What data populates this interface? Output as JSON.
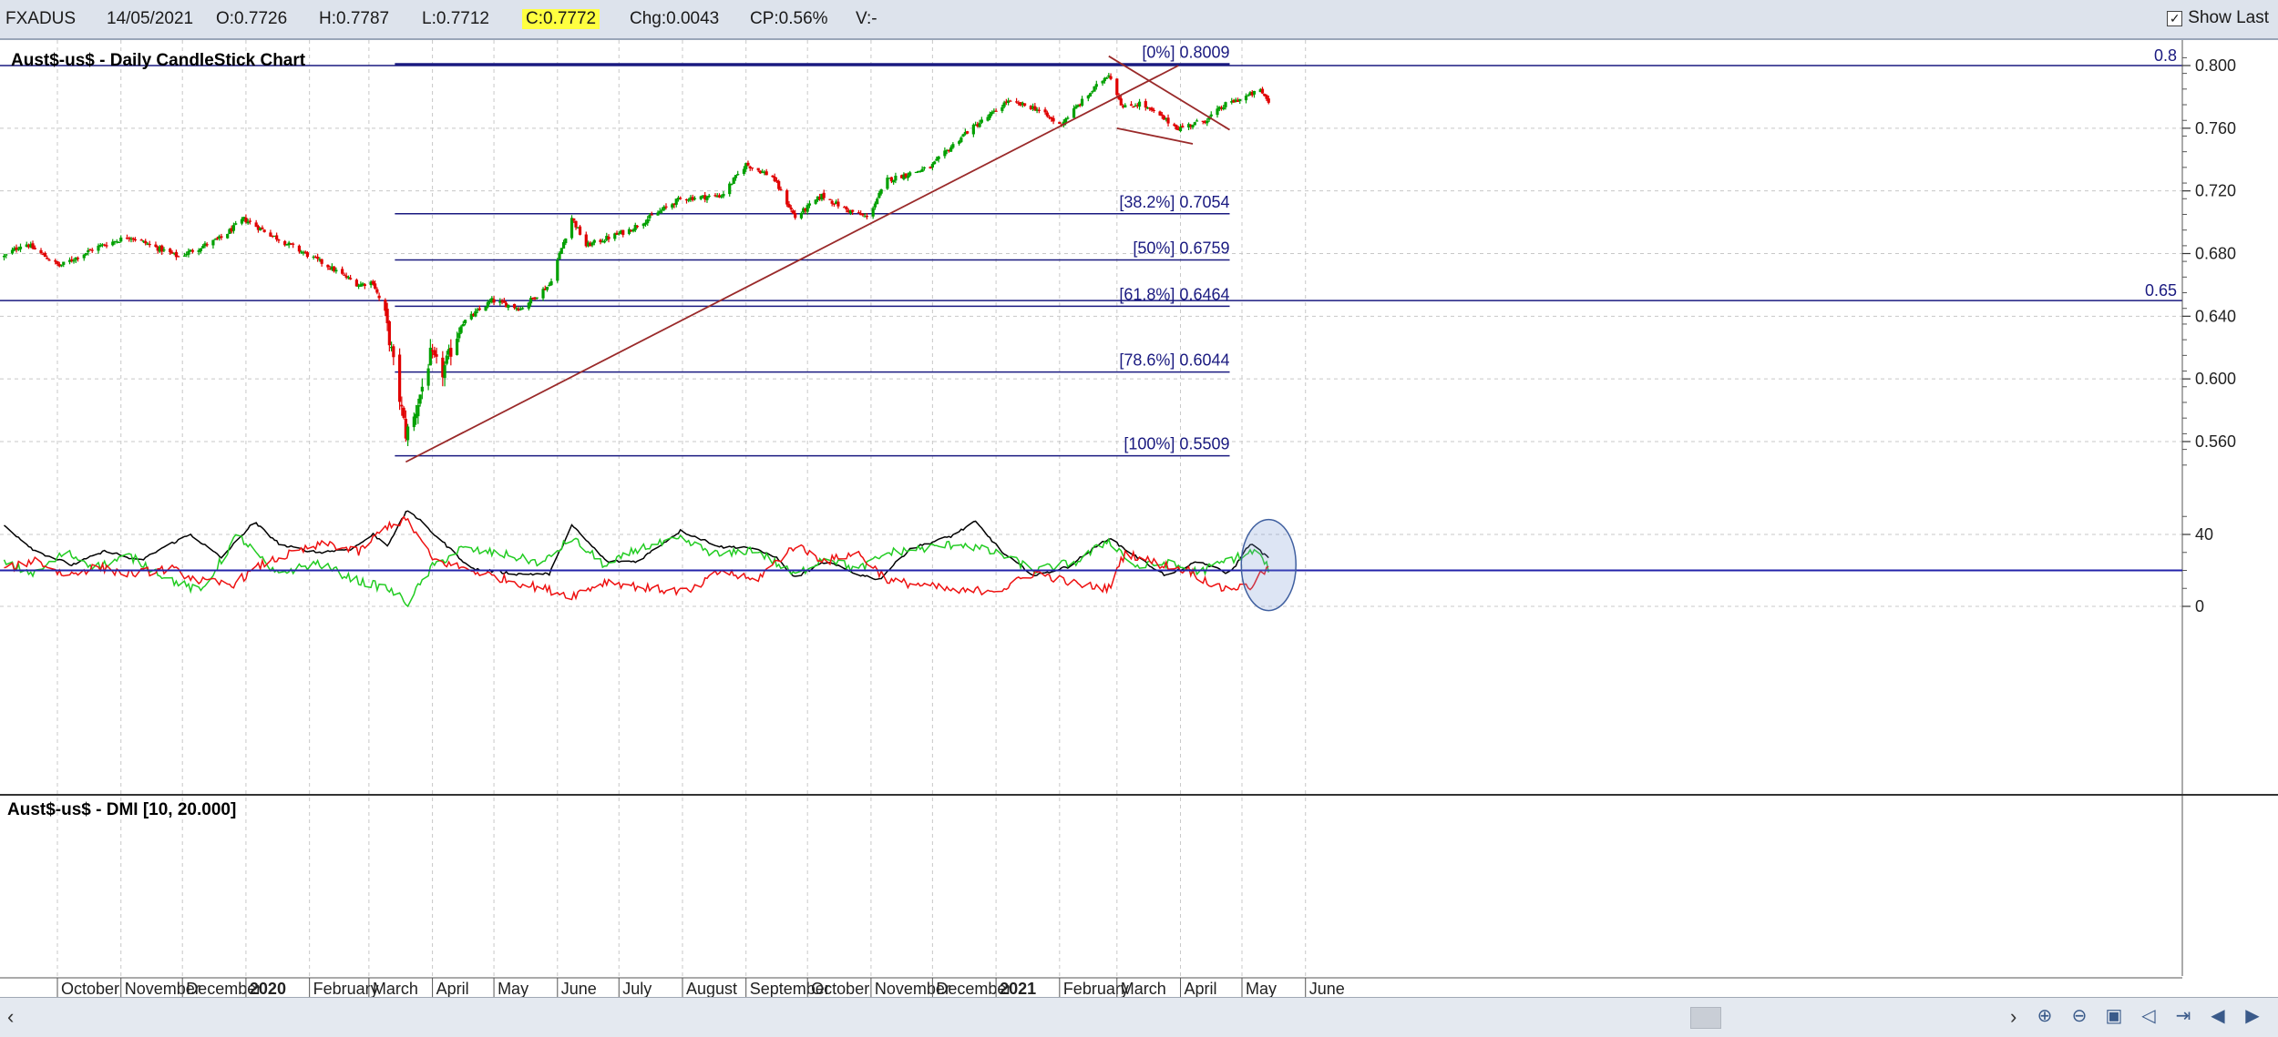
{
  "toolbar": {
    "symbol": "FXADUS",
    "date": "14/05/2021",
    "open": "O:0.7726",
    "high": "H:0.7787",
    "low": "L:0.7712",
    "close": "C:0.7772",
    "change": "Chg:0.0043",
    "change_pct": "CP:0.56%",
    "volume": "V:-",
    "show_last_label": "Show Last",
    "show_last_checked": true
  },
  "colors": {
    "background": "#ffffff",
    "grid": "#c8c8c8",
    "up_candle": "#00a000",
    "down_candle": "#e00000",
    "fib_lines": "#1a1a80",
    "trendline": "#9a2a2a",
    "dmi_adx": "#000000",
    "dmi_plus": "#22cc22",
    "dmi_minus": "#ee1111",
    "dmi_threshold": "#2222aa"
  },
  "chart_data": [
    {
      "type": "candlestick",
      "title": "Aust$-us$ - Daily CandleStick Chart",
      "ylim": [
        0.54,
        0.815
      ],
      "y_ticks": [
        "0.800",
        "0.760",
        "0.720",
        "0.680",
        "0.640",
        "0.600",
        "0.560"
      ],
      "x_labels": [
        "October",
        "November",
        "December",
        "2020",
        "February",
        "March",
        "April",
        "May",
        "June",
        "July",
        "August",
        "September",
        "October",
        "November",
        "December",
        "2021",
        "February",
        "March",
        "April",
        "May",
        "June"
      ],
      "price_anchors": [
        {
          "date": "2019-09-05",
          "close": 0.678
        },
        {
          "date": "2019-09-15",
          "close": 0.687
        },
        {
          "date": "2019-10-02",
          "close": 0.672
        },
        {
          "date": "2019-10-20",
          "close": 0.684
        },
        {
          "date": "2019-11-05",
          "close": 0.691
        },
        {
          "date": "2019-11-29",
          "close": 0.678
        },
        {
          "date": "2019-12-20",
          "close": 0.69
        },
        {
          "date": "2019-12-31",
          "close": 0.702
        },
        {
          "date": "2020-01-20",
          "close": 0.687
        },
        {
          "date": "2020-02-10",
          "close": 0.672
        },
        {
          "date": "2020-02-25",
          "close": 0.66
        },
        {
          "date": "2020-03-03",
          "close": 0.662
        },
        {
          "date": "2020-03-09",
          "close": 0.64
        },
        {
          "date": "2020-03-19",
          "close": 0.565
        },
        {
          "date": "2020-03-23",
          "close": 0.575
        },
        {
          "date": "2020-03-31",
          "close": 0.615
        },
        {
          "date": "2020-04-06",
          "close": 0.604
        },
        {
          "date": "2020-04-15",
          "close": 0.635
        },
        {
          "date": "2020-04-30",
          "close": 0.65
        },
        {
          "date": "2020-05-14",
          "close": 0.645
        },
        {
          "date": "2020-05-28",
          "close": 0.66
        },
        {
          "date": "2020-06-08",
          "close": 0.703
        },
        {
          "date": "2020-06-15",
          "close": 0.685
        },
        {
          "date": "2020-07-06",
          "close": 0.695
        },
        {
          "date": "2020-07-31",
          "close": 0.715
        },
        {
          "date": "2020-08-20",
          "close": 0.717
        },
        {
          "date": "2020-09-01",
          "close": 0.737
        },
        {
          "date": "2020-09-14",
          "close": 0.729
        },
        {
          "date": "2020-09-25",
          "close": 0.703
        },
        {
          "date": "2020-10-08",
          "close": 0.717
        },
        {
          "date": "2020-10-20",
          "close": 0.708
        },
        {
          "date": "2020-10-30",
          "close": 0.703
        },
        {
          "date": "2020-11-09",
          "close": 0.727
        },
        {
          "date": "2020-11-30",
          "close": 0.735
        },
        {
          "date": "2020-12-17",
          "close": 0.757
        },
        {
          "date": "2020-12-31",
          "close": 0.77
        },
        {
          "date": "2021-01-06",
          "close": 0.777
        },
        {
          "date": "2021-01-20",
          "close": 0.773
        },
        {
          "date": "2021-02-01",
          "close": 0.762
        },
        {
          "date": "2021-02-25",
          "close": 0.795
        },
        {
          "date": "2021-03-04",
          "close": 0.773
        },
        {
          "date": "2021-03-12",
          "close": 0.776
        },
        {
          "date": "2021-03-31",
          "close": 0.76
        },
        {
          "date": "2021-04-13",
          "close": 0.765
        },
        {
          "date": "2021-04-23",
          "close": 0.775
        },
        {
          "date": "2021-05-10",
          "close": 0.784
        },
        {
          "date": "2021-05-14",
          "close": 0.777
        }
      ],
      "horizontal_lines": [
        {
          "value": 0.8,
          "label": "0.8"
        },
        {
          "value": 0.65,
          "label": "0.65"
        }
      ],
      "fibonacci_levels": [
        {
          "label": "[0%] 0.8009",
          "value": 0.8009
        },
        {
          "label": "[38.2%] 0.7054",
          "value": 0.7054
        },
        {
          "label": "[50%] 0.6759",
          "value": 0.6759
        },
        {
          "label": "[61.8%] 0.6464",
          "value": 0.6464
        },
        {
          "label": "[78.6%] 0.6044",
          "value": 0.6044
        },
        {
          "label": "[100%] 0.5509",
          "value": 0.5509
        }
      ],
      "fib_range": {
        "from": "2020-03-19",
        "to": "2021-04-25"
      },
      "trendlines": [
        {
          "from": {
            "date": "2020-03-19",
            "price": 0.547
          },
          "to": {
            "date": "2021-03-31",
            "price": 0.8
          }
        },
        {
          "from": {
            "date": "2021-02-25",
            "price": 0.806
          },
          "to": {
            "date": "2021-04-25",
            "price": 0.759
          }
        },
        {
          "from": {
            "date": "2021-03-01",
            "price": 0.76
          },
          "to": {
            "date": "2021-04-07",
            "price": 0.75
          }
        }
      ]
    },
    {
      "type": "line",
      "title": "Aust$-us$ - DMI [10, 20.000]",
      "ylim": [
        -2,
        52
      ],
      "y_ticks": [
        "40",
        "0"
      ],
      "threshold": 20,
      "series": [
        {
          "key": "adx",
          "anchors": [
            {
              "date": "2019-09-05",
              "v": 45
            },
            {
              "date": "2019-09-20",
              "v": 31
            },
            {
              "date": "2019-10-08",
              "v": 23
            },
            {
              "date": "2019-10-25",
              "v": 31
            },
            {
              "date": "2019-11-10",
              "v": 25
            },
            {
              "date": "2019-11-22",
              "v": 33
            },
            {
              "date": "2019-12-05",
              "v": 40
            },
            {
              "date": "2019-12-20",
              "v": 27
            },
            {
              "date": "2020-01-05",
              "v": 47
            },
            {
              "date": "2020-01-18",
              "v": 34
            },
            {
              "date": "2020-02-05",
              "v": 30
            },
            {
              "date": "2020-02-22",
              "v": 32
            },
            {
              "date": "2020-03-03",
              "v": 40
            },
            {
              "date": "2020-03-10",
              "v": 34
            },
            {
              "date": "2020-03-20",
              "v": 54
            },
            {
              "date": "2020-04-02",
              "v": 40
            },
            {
              "date": "2020-04-20",
              "v": 21
            },
            {
              "date": "2020-05-12",
              "v": 18
            },
            {
              "date": "2020-05-28",
              "v": 18
            },
            {
              "date": "2020-06-08",
              "v": 45
            },
            {
              "date": "2020-06-25",
              "v": 25
            },
            {
              "date": "2020-07-10",
              "v": 25
            },
            {
              "date": "2020-07-31",
              "v": 42
            },
            {
              "date": "2020-08-20",
              "v": 33
            },
            {
              "date": "2020-09-01",
              "v": 33
            },
            {
              "date": "2020-09-15",
              "v": 28
            },
            {
              "date": "2020-09-25",
              "v": 16
            },
            {
              "date": "2020-10-10",
              "v": 25
            },
            {
              "date": "2020-10-25",
              "v": 18
            },
            {
              "date": "2020-11-05",
              "v": 15
            },
            {
              "date": "2020-11-20",
              "v": 32
            },
            {
              "date": "2020-12-10",
              "v": 39
            },
            {
              "date": "2020-12-22",
              "v": 47
            },
            {
              "date": "2021-01-05",
              "v": 29
            },
            {
              "date": "2021-01-20",
              "v": 17
            },
            {
              "date": "2021-02-05",
              "v": 22
            },
            {
              "date": "2021-02-25",
              "v": 38
            },
            {
              "date": "2021-03-10",
              "v": 28
            },
            {
              "date": "2021-03-25",
              "v": 17
            },
            {
              "date": "2021-04-10",
              "v": 25
            },
            {
              "date": "2021-04-25",
              "v": 18
            },
            {
              "date": "2021-05-05",
              "v": 35
            },
            {
              "date": "2021-05-14",
              "v": 27
            }
          ]
        },
        {
          "key": "plus_di",
          "anchors": [
            {
              "date": "2019-09-05",
              "v": 24
            },
            {
              "date": "2019-09-20",
              "v": 18
            },
            {
              "date": "2019-10-05",
              "v": 30
            },
            {
              "date": "2019-10-20",
              "v": 22
            },
            {
              "date": "2019-11-05",
              "v": 28
            },
            {
              "date": "2019-11-25",
              "v": 15
            },
            {
              "date": "2019-12-10",
              "v": 8
            },
            {
              "date": "2019-12-28",
              "v": 40
            },
            {
              "date": "2020-01-15",
              "v": 18
            },
            {
              "date": "2020-02-05",
              "v": 24
            },
            {
              "date": "2020-02-25",
              "v": 14
            },
            {
              "date": "2020-03-10",
              "v": 10
            },
            {
              "date": "2020-03-20",
              "v": 2
            },
            {
              "date": "2020-04-01",
              "v": 22
            },
            {
              "date": "2020-04-15",
              "v": 32
            },
            {
              "date": "2020-05-05",
              "v": 29
            },
            {
              "date": "2020-05-25",
              "v": 24
            },
            {
              "date": "2020-06-08",
              "v": 38
            },
            {
              "date": "2020-06-25",
              "v": 22
            },
            {
              "date": "2020-07-10",
              "v": 32
            },
            {
              "date": "2020-07-31",
              "v": 37
            },
            {
              "date": "2020-08-20",
              "v": 28
            },
            {
              "date": "2020-09-05",
              "v": 32
            },
            {
              "date": "2020-09-25",
              "v": 17
            },
            {
              "date": "2020-10-10",
              "v": 28
            },
            {
              "date": "2020-10-25",
              "v": 20
            },
            {
              "date": "2020-11-10",
              "v": 30
            },
            {
              "date": "2020-11-25",
              "v": 32
            },
            {
              "date": "2020-12-15",
              "v": 35
            },
            {
              "date": "2021-01-05",
              "v": 28
            },
            {
              "date": "2021-01-20",
              "v": 20
            },
            {
              "date": "2021-02-10",
              "v": 25
            },
            {
              "date": "2021-02-25",
              "v": 37
            },
            {
              "date": "2021-03-10",
              "v": 22
            },
            {
              "date": "2021-03-25",
              "v": 24
            },
            {
              "date": "2021-04-10",
              "v": 19
            },
            {
              "date": "2021-04-25",
              "v": 26
            },
            {
              "date": "2021-05-08",
              "v": 31
            },
            {
              "date": "2021-05-14",
              "v": 21
            }
          ]
        },
        {
          "key": "minus_di",
          "anchors": [
            {
              "date": "2019-09-05",
              "v": 20
            },
            {
              "date": "2019-09-20",
              "v": 26
            },
            {
              "date": "2019-10-05",
              "v": 17
            },
            {
              "date": "2019-10-20",
              "v": 22
            },
            {
              "date": "2019-11-05",
              "v": 18
            },
            {
              "date": "2019-11-25",
              "v": 21
            },
            {
              "date": "2019-12-10",
              "v": 14
            },
            {
              "date": "2019-12-25",
              "v": 12
            },
            {
              "date": "2020-01-10",
              "v": 24
            },
            {
              "date": "2020-01-25",
              "v": 30
            },
            {
              "date": "2020-02-10",
              "v": 35
            },
            {
              "date": "2020-02-25",
              "v": 30
            },
            {
              "date": "2020-03-10",
              "v": 45
            },
            {
              "date": "2020-03-20",
              "v": 48
            },
            {
              "date": "2020-04-01",
              "v": 26
            },
            {
              "date": "2020-04-20",
              "v": 20
            },
            {
              "date": "2020-05-10",
              "v": 14
            },
            {
              "date": "2020-06-08",
              "v": 6
            },
            {
              "date": "2020-06-25",
              "v": 14
            },
            {
              "date": "2020-07-15",
              "v": 10
            },
            {
              "date": "2020-08-05",
              "v": 8
            },
            {
              "date": "2020-08-20",
              "v": 20
            },
            {
              "date": "2020-09-05",
              "v": 14
            },
            {
              "date": "2020-09-25",
              "v": 34
            },
            {
              "date": "2020-10-10",
              "v": 25
            },
            {
              "date": "2020-10-25",
              "v": 30
            },
            {
              "date": "2020-11-10",
              "v": 14
            },
            {
              "date": "2020-11-25",
              "v": 12
            },
            {
              "date": "2020-12-15",
              "v": 8
            },
            {
              "date": "2021-01-05",
              "v": 10
            },
            {
              "date": "2021-01-20",
              "v": 19
            },
            {
              "date": "2021-02-10",
              "v": 12
            },
            {
              "date": "2021-02-25",
              "v": 10
            },
            {
              "date": "2021-03-05",
              "v": 30
            },
            {
              "date": "2021-03-20",
              "v": 24
            },
            {
              "date": "2021-04-05",
              "v": 20
            },
            {
              "date": "2021-04-20",
              "v": 10
            },
            {
              "date": "2021-05-05",
              "v": 11
            },
            {
              "date": "2021-05-14",
              "v": 22
            }
          ]
        }
      ],
      "highlight_circle": {
        "date": "2021-05-14",
        "v": 23
      }
    }
  ],
  "nav_icons": [
    "zoom-in-icon",
    "zoom-out-icon",
    "save-icon",
    "scroll-back-icon",
    "scroll-forward-icon",
    "end-icon",
    "prev-icon",
    "next-icon"
  ]
}
